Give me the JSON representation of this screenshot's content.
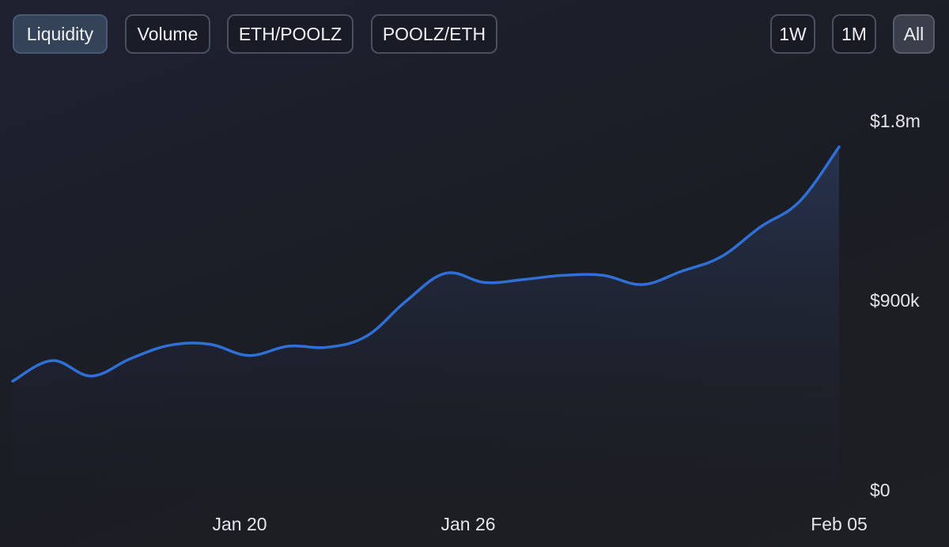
{
  "metric_tabs": [
    {
      "label": "Liquidity",
      "active": true
    },
    {
      "label": "Volume",
      "active": false
    },
    {
      "label": "ETH/POOLZ",
      "active": false
    },
    {
      "label": "POOLZ/ETH",
      "active": false
    }
  ],
  "range_tabs": [
    {
      "label": "1W",
      "active": false
    },
    {
      "label": "1M",
      "active": false
    },
    {
      "label": "All",
      "active": true
    }
  ],
  "colors": {
    "line": "#2f6fd6",
    "active_tab_bg": "#354359"
  },
  "chart_data": {
    "type": "area",
    "title": "",
    "xlabel": "",
    "ylabel": "",
    "x_tick_labels": [
      "Jan 20",
      "Jan 26",
      "Feb 05"
    ],
    "y_tick_labels": [
      "$0",
      "$900k",
      "$1.8m"
    ],
    "y_ticks": [
      0,
      900000,
      1800000
    ],
    "ylim": [
      0,
      1800000
    ],
    "grid": false,
    "legend": "none",
    "series": [
      {
        "points": [
          [
            "Jan 16",
            530000
          ],
          [
            "Jan 17",
            630000
          ],
          [
            "Jan 18",
            555000
          ],
          [
            "Jan 19",
            640000
          ],
          [
            "Jan 20",
            705000
          ],
          [
            "Jan 21",
            710000
          ],
          [
            "Jan 22",
            655000
          ],
          [
            "Jan 23",
            700000
          ],
          [
            "Jan 24",
            695000
          ],
          [
            "Jan 25",
            750000
          ],
          [
            "Jan 26",
            920000
          ],
          [
            "Jan 27",
            1055000
          ],
          [
            "Jan 28",
            1010000
          ],
          [
            "Jan 29",
            1025000
          ],
          [
            "Jan 30",
            1045000
          ],
          [
            "Jan 31",
            1045000
          ],
          [
            "Feb 01",
            1000000
          ],
          [
            "Feb 02",
            1065000
          ],
          [
            "Feb 03",
            1135000
          ],
          [
            "Feb 04",
            1280000
          ],
          [
            "Feb 05",
            1405000
          ],
          [
            "Feb 06",
            1670000
          ]
        ]
      }
    ]
  }
}
